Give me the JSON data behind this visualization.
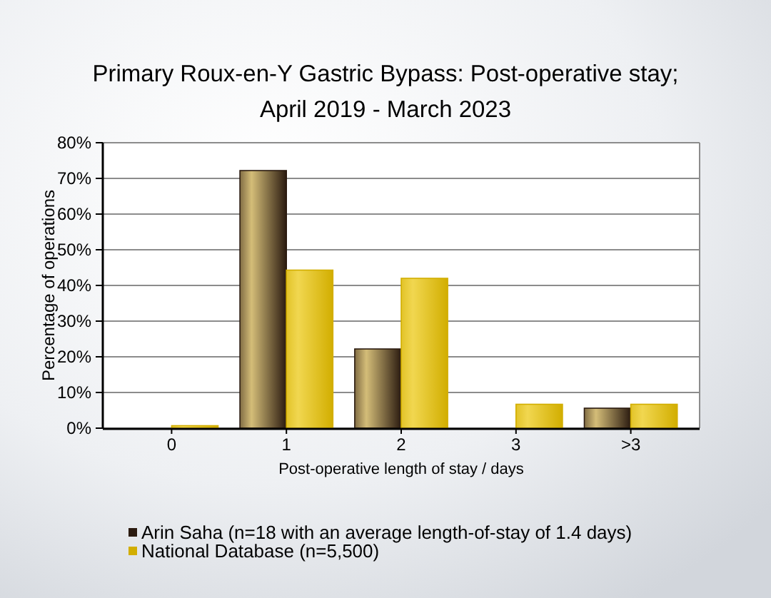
{
  "chart_data": {
    "type": "bar",
    "title": "Primary Roux-en-Y Gastric Bypass: Post-operative stay; April 2019 - March 2023",
    "xlabel": "Post-operative length of stay / days",
    "ylabel": "Percentage of operations",
    "categories": [
      "0",
      "1",
      "2",
      "3",
      ">3"
    ],
    "series": [
      {
        "name": "Arin Saha (n=18 with an average length-of-stay of 1.4 days)",
        "color": "#2b1b10",
        "values": [
          0,
          72.2,
          22.2,
          0,
          5.6
        ]
      },
      {
        "name": "National Database (n=5,500)",
        "color": "#d2ae00",
        "values": [
          0.7,
          44.3,
          42,
          6.7,
          6.7
        ]
      }
    ],
    "ylim": [
      0,
      80
    ],
    "yticks": [
      {
        "value": 0,
        "label": "0%"
      },
      {
        "value": 10,
        "label": "10%"
      },
      {
        "value": 20,
        "label": "20%"
      },
      {
        "value": 30,
        "label": "30%"
      },
      {
        "value": 40,
        "label": "40%"
      },
      {
        "value": 50,
        "label": "50%"
      },
      {
        "value": 60,
        "label": "60%"
      },
      {
        "value": 70,
        "label": "70%"
      },
      {
        "value": 80,
        "label": "80%"
      }
    ],
    "grid": "y",
    "legend": "bottom"
  }
}
